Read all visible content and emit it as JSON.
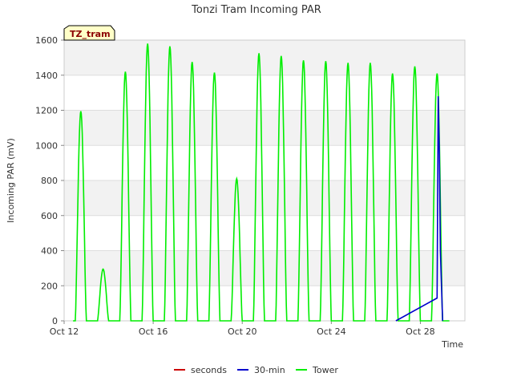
{
  "chart_data": {
    "type": "line",
    "title": "Tonzi Tram Incoming PAR",
    "xlabel": "Time",
    "ylabel": "Incoming PAR (mV)",
    "badge": "TZ_tram",
    "ylim": [
      0,
      1600
    ],
    "xlim": [
      0,
      18
    ],
    "yticks": [
      0,
      200,
      400,
      600,
      800,
      1000,
      1200,
      1400,
      1600
    ],
    "xticks": [
      {
        "day": 0,
        "label": "Oct 12"
      },
      {
        "day": 4,
        "label": "Oct 16"
      },
      {
        "day": 8,
        "label": "Oct 20"
      },
      {
        "day": 12,
        "label": "Oct 24"
      },
      {
        "day": 16,
        "label": "Oct 28"
      }
    ],
    "legend": [
      "seconds",
      "30-min",
      "Tower"
    ],
    "colors": {
      "seconds": "#cc0000",
      "30-min": "#0000cc",
      "Tower": "#00ee00"
    },
    "series": [
      {
        "name": "Tower",
        "daily_peaks": [
          {
            "day": 0.75,
            "peak": 1195
          },
          {
            "day": 1.75,
            "peak": 295
          },
          {
            "day": 2.75,
            "peak": 1420
          },
          {
            "day": 3.75,
            "peak": 1580
          },
          {
            "day": 4.75,
            "peak": 1565
          },
          {
            "day": 5.75,
            "peak": 1475
          },
          {
            "day": 6.75,
            "peak": 1415
          },
          {
            "day": 7.75,
            "peak": 810
          },
          {
            "day": 8.75,
            "peak": 1525
          },
          {
            "day": 9.75,
            "peak": 1510
          },
          {
            "day": 10.75,
            "peak": 1485
          },
          {
            "day": 11.75,
            "peak": 1480
          },
          {
            "day": 12.75,
            "peak": 1470
          },
          {
            "day": 13.75,
            "peak": 1470
          },
          {
            "day": 14.75,
            "peak": 1410
          },
          {
            "day": 15.75,
            "peak": 1450
          },
          {
            "day": 16.75,
            "peak": 1410
          }
        ]
      },
      {
        "name": "30-min",
        "points": [
          [
            14.9,
            0
          ],
          [
            16.75,
            130
          ],
          [
            16.8,
            1280
          ],
          [
            16.85,
            950
          ],
          [
            16.9,
            400
          ],
          [
            16.95,
            200
          ],
          [
            17.0,
            0
          ]
        ]
      },
      {
        "name": "seconds",
        "points": []
      }
    ]
  }
}
